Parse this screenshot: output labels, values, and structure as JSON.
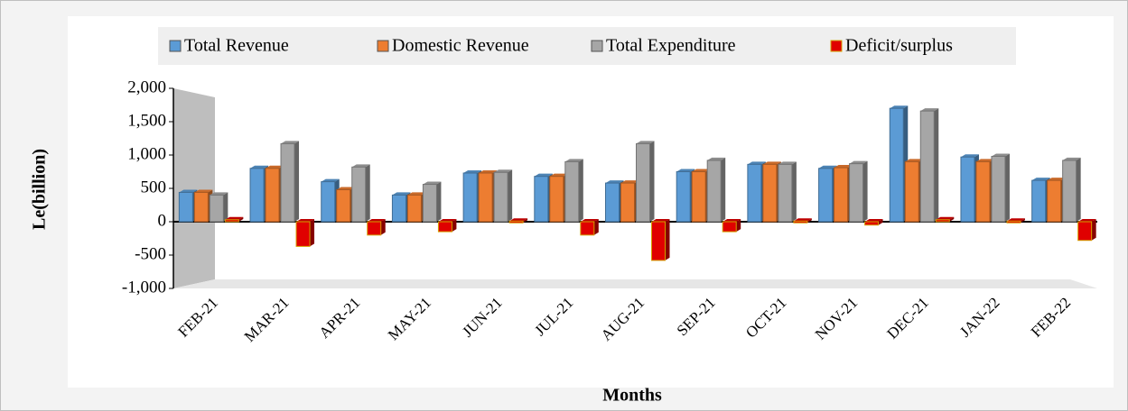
{
  "chart_data": {
    "type": "bar",
    "categories": [
      "FEB-21",
      "MAR-21",
      "APR-21",
      "MAY-21",
      "JUN-21",
      "JUL-21",
      "AUG-21",
      "SEP-21",
      "OCT-21",
      "NOV-21",
      "DEC-21",
      "JAN-22",
      "FEB-22"
    ],
    "series": [
      {
        "name": "Total Revenue",
        "color": "#5b9bd5",
        "values": [
          440,
          800,
          600,
          400,
          730,
          680,
          580,
          750,
          860,
          800,
          1700,
          970,
          620
        ]
      },
      {
        "name": "Domestic Revenue",
        "color": "#ed7d31",
        "values": [
          440,
          800,
          480,
          400,
          730,
          680,
          580,
          750,
          860,
          810,
          900,
          900,
          620
        ]
      },
      {
        "name": "Total Expenditure",
        "color": "#a6a6a6",
        "values": [
          400,
          1170,
          820,
          560,
          740,
          900,
          1170,
          920,
          860,
          870,
          1660,
          980,
          920
        ]
      },
      {
        "name": "Deficit/surplus",
        "color": "#e00000",
        "values": [
          30,
          -370,
          -200,
          -150,
          10,
          -200,
          -580,
          -150,
          10,
          -50,
          30,
          10,
          -280
        ]
      }
    ],
    "ylim": [
      -1000,
      2000
    ],
    "yticks": [
      {
        "value": 2000,
        "label": "2,000"
      },
      {
        "value": 1500,
        "label": "1,500"
      },
      {
        "value": 1000,
        "label": "1,000"
      },
      500,
      0,
      -500,
      {
        "value": -1000,
        "label": "-1,000"
      }
    ],
    "ylabel": "Le(billion)",
    "xlabel": "Months",
    "legend": "top"
  }
}
